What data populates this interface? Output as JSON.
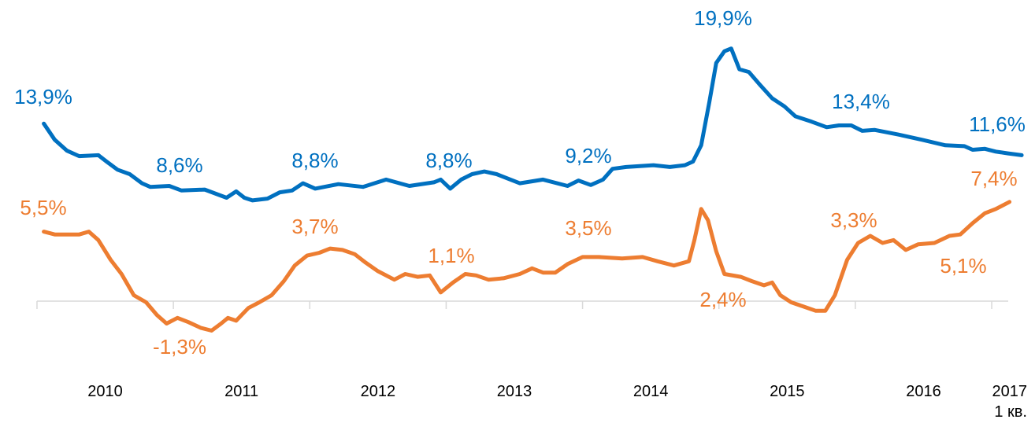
{
  "chart_data": {
    "type": "line",
    "xlim": [
      2009.95,
      2017.3
    ],
    "xticks": [
      2010,
      2011,
      2012,
      2013,
      2014,
      2015,
      2016,
      {
        "value": 2017,
        "label": "2017\n1 кв."
      }
    ],
    "ylim": [
      -14,
      24
    ],
    "y2lim": [
      -5,
      19.3
    ],
    "series": [
      {
        "color": "#0070C0",
        "x": [
          2010.05,
          2010.13,
          2010.22,
          2010.31,
          2010.45,
          2010.51,
          2010.59,
          2010.68,
          2010.77,
          2010.83,
          2010.97,
          2011.06,
          2011.23,
          2011.39,
          2011.46,
          2011.52,
          2011.58,
          2011.69,
          2011.78,
          2011.87,
          2011.95,
          2012.04,
          2012.21,
          2012.39,
          2012.56,
          2012.73,
          2012.91,
          2012.96,
          2013.03,
          2013.11,
          2013.19,
          2013.28,
          2013.37,
          2013.54,
          2013.71,
          2013.89,
          2013.97,
          2014.06,
          2014.15,
          2014.22,
          2014.32,
          2014.52,
          2014.64,
          2014.75,
          2014.81,
          2014.87,
          2014.93,
          2014.98,
          2015.04,
          2015.09,
          2015.15,
          2015.22,
          2015.3,
          2015.39,
          2015.48,
          2015.56,
          2015.68,
          2015.79,
          2015.88,
          2015.97,
          2016.05,
          2016.14,
          2016.31,
          2016.49,
          2016.66,
          2016.8,
          2016.86,
          2016.95,
          2017.03,
          2017.12,
          2017.22
        ],
        "values": [
          13.9,
          12.1,
          10.9,
          10.3,
          10.4,
          9.7,
          8.8,
          8.3,
          7.3,
          6.9,
          7.0,
          6.5,
          6.6,
          5.7,
          6.4,
          5.7,
          5.4,
          5.6,
          6.3,
          6.5,
          7.3,
          6.7,
          7.2,
          6.9,
          7.7,
          7.0,
          7.4,
          7.7,
          6.7,
          7.7,
          8.3,
          8.6,
          8.3,
          7.3,
          7.7,
          7.0,
          7.6,
          7.1,
          7.7,
          8.9,
          9.1,
          9.3,
          9.1,
          9.3,
          9.7,
          11.5,
          16.3,
          20.6,
          21.9,
          22.2,
          19.9,
          19.6,
          18.2,
          16.7,
          15.8,
          14.7,
          14.1,
          13.5,
          13.7,
          13.7,
          13.1,
          13.2,
          12.7,
          12.1,
          11.5,
          11.4,
          11.0,
          11.1,
          10.8,
          10.6,
          10.4
        ],
        "labels": [
          "13,9%",
          "8,6%",
          "8,8%",
          "8,8%",
          "9,2%",
          "19,9%",
          "13,4%",
          "11,6%"
        ]
      },
      {
        "color": "#ED7D31",
        "axis": "y2",
        "x": [
          2010.05,
          2010.13,
          2010.22,
          2010.31,
          2010.38,
          2010.45,
          2010.54,
          2010.62,
          2010.71,
          2010.8,
          2010.88,
          2010.95,
          2011.03,
          2011.11,
          2011.2,
          2011.28,
          2011.35,
          2011.4,
          2011.46,
          2011.55,
          2011.63,
          2011.72,
          2011.81,
          2011.89,
          2011.98,
          2012.07,
          2012.15,
          2012.24,
          2012.33,
          2012.41,
          2012.5,
          2012.62,
          2012.7,
          2012.79,
          2012.88,
          2012.96,
          2013.05,
          2013.14,
          2013.22,
          2013.31,
          2013.42,
          2013.54,
          2013.63,
          2013.71,
          2013.8,
          2013.89,
          2014.0,
          2014.12,
          2014.29,
          2014.44,
          2014.55,
          2014.67,
          2014.78,
          2014.82,
          2014.87,
          2014.92,
          2014.98,
          2015.04,
          2015.16,
          2015.24,
          2015.33,
          2015.39,
          2015.45,
          2015.53,
          2015.62,
          2015.71,
          2015.78,
          2015.85,
          2015.94,
          2016.02,
          2016.11,
          2016.2,
          2016.28,
          2016.37,
          2016.46,
          2016.58,
          2016.69,
          2016.77,
          2016.86,
          2016.95,
          2017.03,
          2017.13
        ],
        "values": [
          5.2,
          5.0,
          5.0,
          5.0,
          5.2,
          4.6,
          3.2,
          2.2,
          0.7,
          0.2,
          -0.7,
          -1.3,
          -0.9,
          -1.2,
          -1.6,
          -1.8,
          -1.3,
          -0.9,
          -1.1,
          -0.2,
          0.2,
          0.7,
          1.7,
          2.8,
          3.5,
          3.7,
          4.0,
          3.9,
          3.6,
          3.0,
          2.4,
          1.8,
          2.2,
          2.0,
          2.1,
          0.9,
          1.6,
          2.2,
          2.1,
          1.8,
          1.9,
          2.2,
          2.6,
          2.3,
          2.3,
          2.9,
          3.4,
          3.4,
          3.3,
          3.4,
          3.1,
          2.8,
          3.1,
          4.6,
          6.8,
          6.0,
          3.8,
          2.2,
          2.0,
          1.7,
          1.4,
          1.6,
          0.7,
          0.2,
          -0.1,
          -0.4,
          -0.4,
          0.7,
          3.2,
          4.4,
          4.9,
          4.4,
          4.6,
          3.9,
          4.3,
          4.4,
          4.9,
          5.0,
          5.8,
          6.5,
          6.8,
          7.3
        ],
        "labels": [
          "5,5%",
          "-1,3%",
          "3,7%",
          "1,1%",
          "3,5%",
          "2,4%",
          "3,3%",
          "5,1%",
          "7,4%"
        ]
      }
    ]
  }
}
